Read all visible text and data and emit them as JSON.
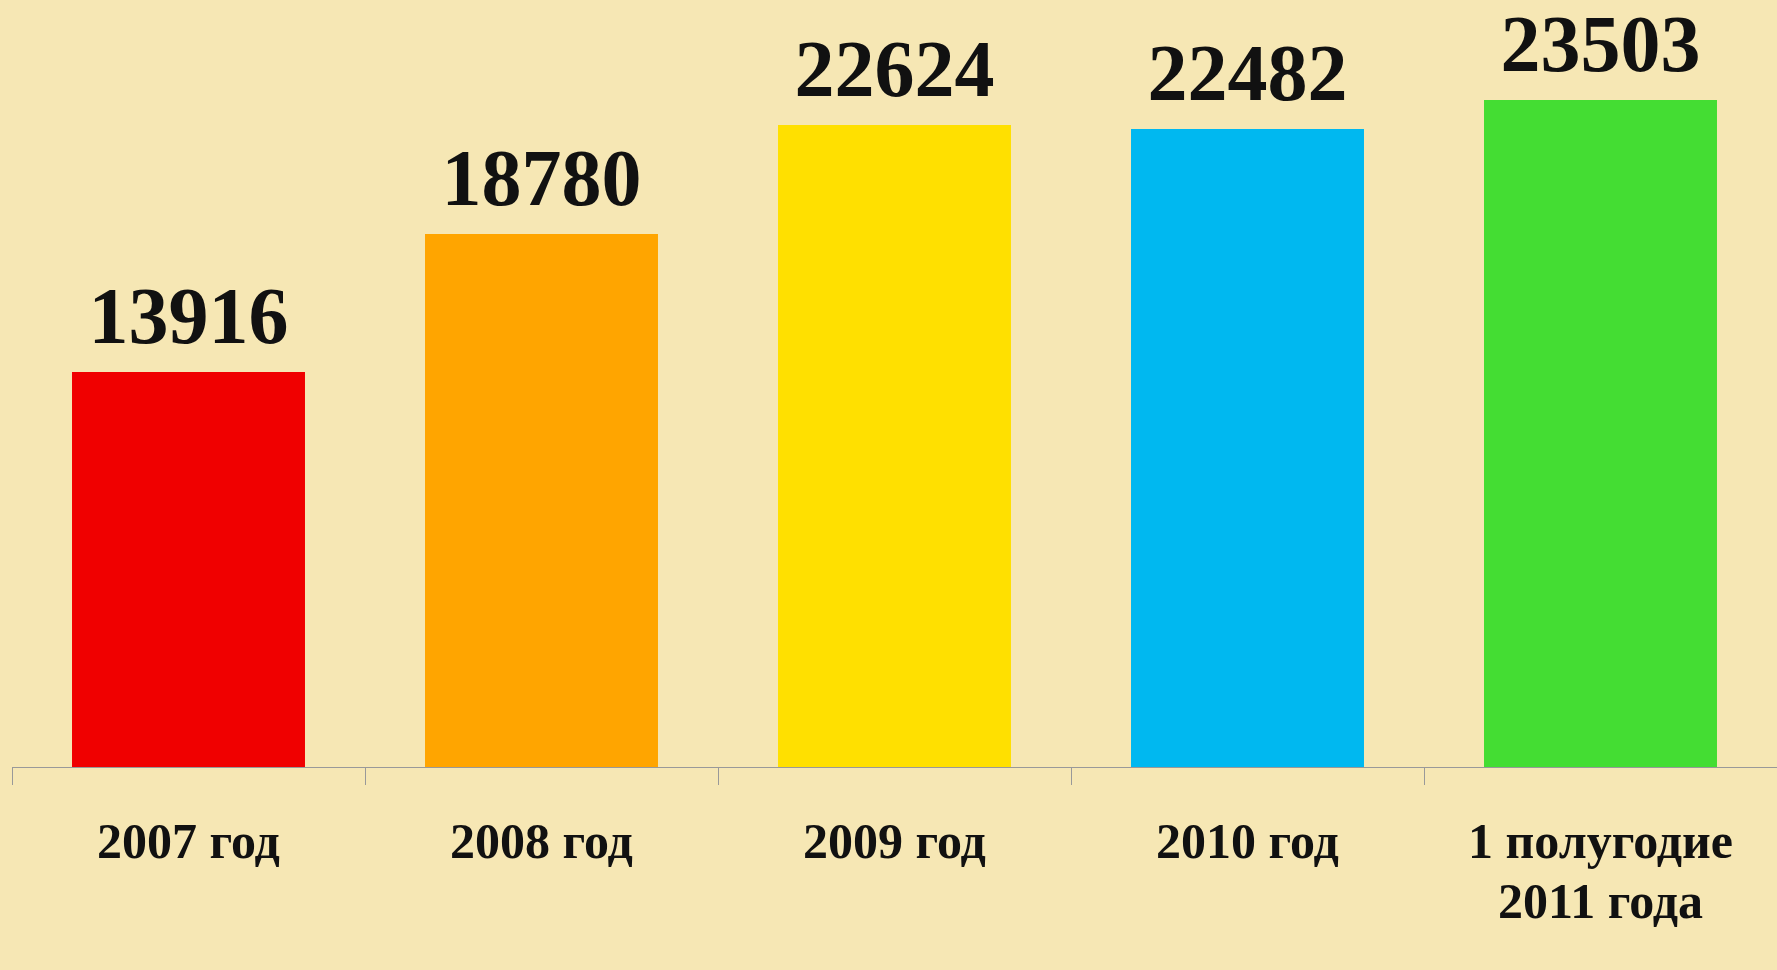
{
  "chart_data": {
    "type": "bar",
    "categories": [
      "2007 год",
      "2008 год",
      "2009 год",
      "2010 год",
      "1 полугодие 2011 года"
    ],
    "values": [
      13916,
      18780,
      22624,
      22482,
      23503
    ],
    "colors": [
      "#f00000",
      "#ffa500",
      "#ffe000",
      "#00b8f0",
      "#44dd33"
    ],
    "data_labels": true,
    "grid": false,
    "legend": false
  }
}
